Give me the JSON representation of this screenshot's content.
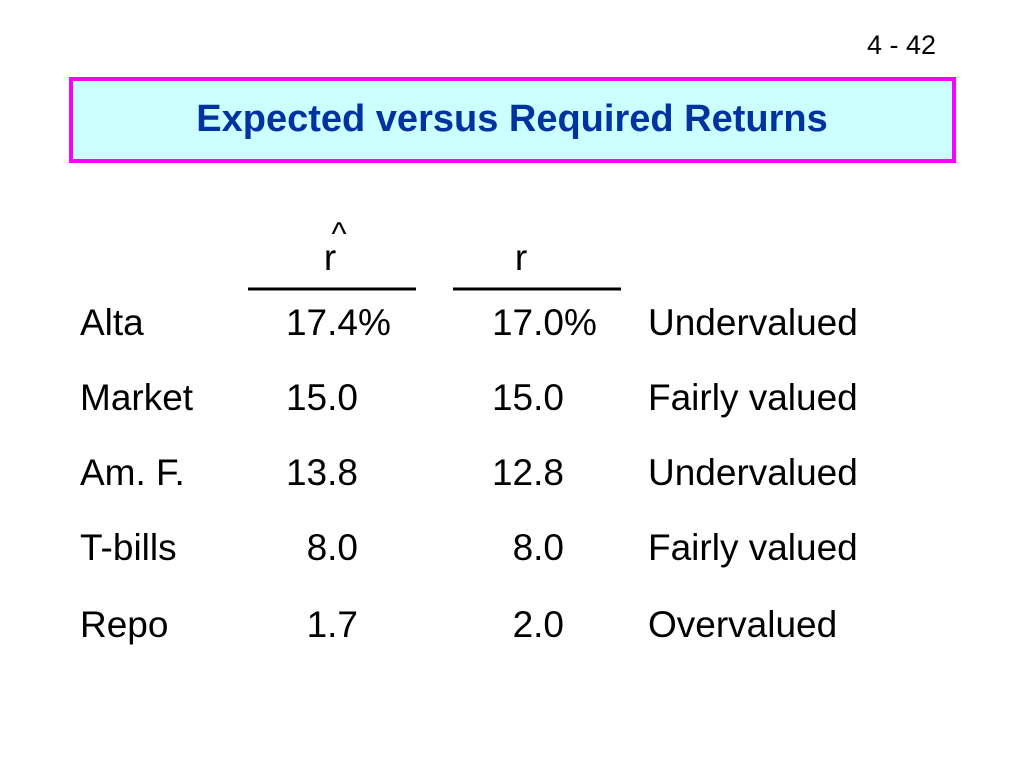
{
  "page_number": "4 - 42",
  "title": "Expected versus Required Returns",
  "table": {
    "header_hat": "^",
    "header": [
      "r",
      "r"
    ],
    "rows": [
      [
        "Alta",
        "17.4%",
        "17.0%",
        "Undervalued"
      ],
      [
        "Market",
        "15.0",
        "15.0",
        "Fairly valued"
      ],
      [
        "Am. F.",
        "13.8",
        "12.8",
        "Undervalued"
      ],
      [
        "T-bills",
        "8.0",
        "8.0",
        "Fairly valued"
      ],
      [
        "Repo",
        "1.7",
        "2.0",
        "Overvalued"
      ]
    ]
  }
}
